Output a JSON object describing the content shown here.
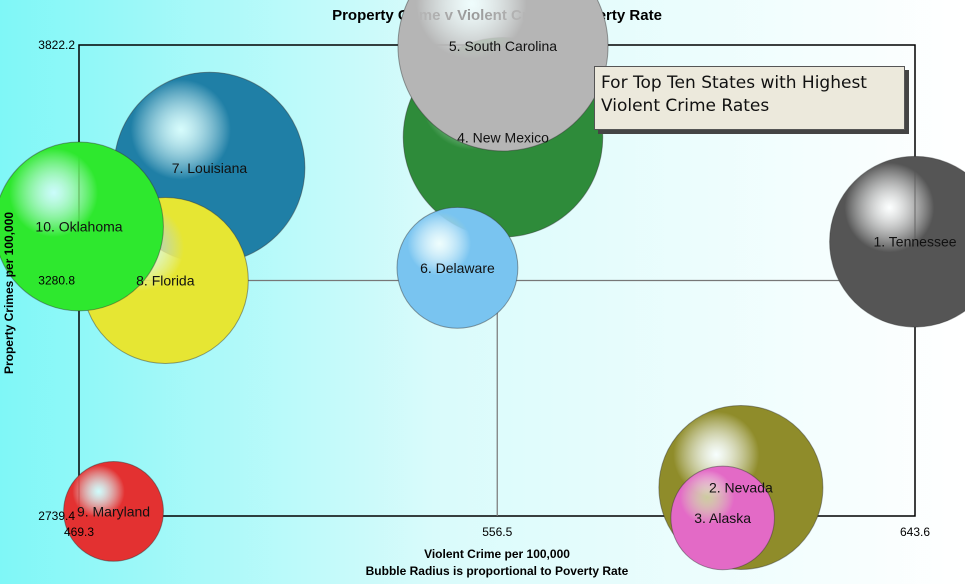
{
  "chart_data": {
    "type": "bubble",
    "title": "Property Crime v Violent Crime v Poverty Rate",
    "xlabel": "Violent Crime per 100,000",
    "xlabel2": "Bubble Radius is proportional to Poverty Rate",
    "ylabel": "Property Crimes per 100,000",
    "xlim": [
      469.3,
      643.6
    ],
    "ylim": [
      2739.4,
      3822.2
    ],
    "xticks": [
      "469.3",
      "556.5",
      "643.6"
    ],
    "yticks": [
      "2739.4",
      "3280.8",
      "3822.2"
    ],
    "crosshair": {
      "x": 556.5,
      "y": 3280.8
    },
    "annotation": "For Top Ten States with Highest Violent Crime Rates",
    "grid": false,
    "points": [
      {
        "label": "1. Tennessee",
        "x": 643.6,
        "y": 3370,
        "r": 17.8,
        "color": "#555555"
      },
      {
        "label": "2. Nevada",
        "x": 607.3,
        "y": 2805,
        "r": 17.1,
        "color": "#8f8c2a"
      },
      {
        "label": "3. Alaska",
        "x": 603.5,
        "y": 2735,
        "r": 10.8,
        "color": "#e36ac6"
      },
      {
        "label": "4. New Mexico",
        "x": 557.7,
        "y": 3610,
        "r": 20.8,
        "color": "#2e8b3a"
      },
      {
        "label": "5. South Carolina",
        "x": 557.7,
        "y": 3820,
        "r": 21.9,
        "color": "#b5b5b5"
      },
      {
        "label": "6. Delaware",
        "x": 548.2,
        "y": 3310,
        "r": 12.6,
        "color": "#79c4f0"
      },
      {
        "label": "7. Louisiana",
        "x": 496.5,
        "y": 3540,
        "r": 19.9,
        "color": "#1f7fa6"
      },
      {
        "label": "8. Florida",
        "x": 487.3,
        "y": 3280.8,
        "r": 17.3,
        "color": "#e6e633"
      },
      {
        "label": "9. Maryland",
        "x": 476.5,
        "y": 2750,
        "r": 10.4,
        "color": "#e33131"
      },
      {
        "label": "10. Oklahoma",
        "x": 469.3,
        "y": 3405,
        "r": 17.6,
        "color": "#2ee82e"
      }
    ]
  }
}
